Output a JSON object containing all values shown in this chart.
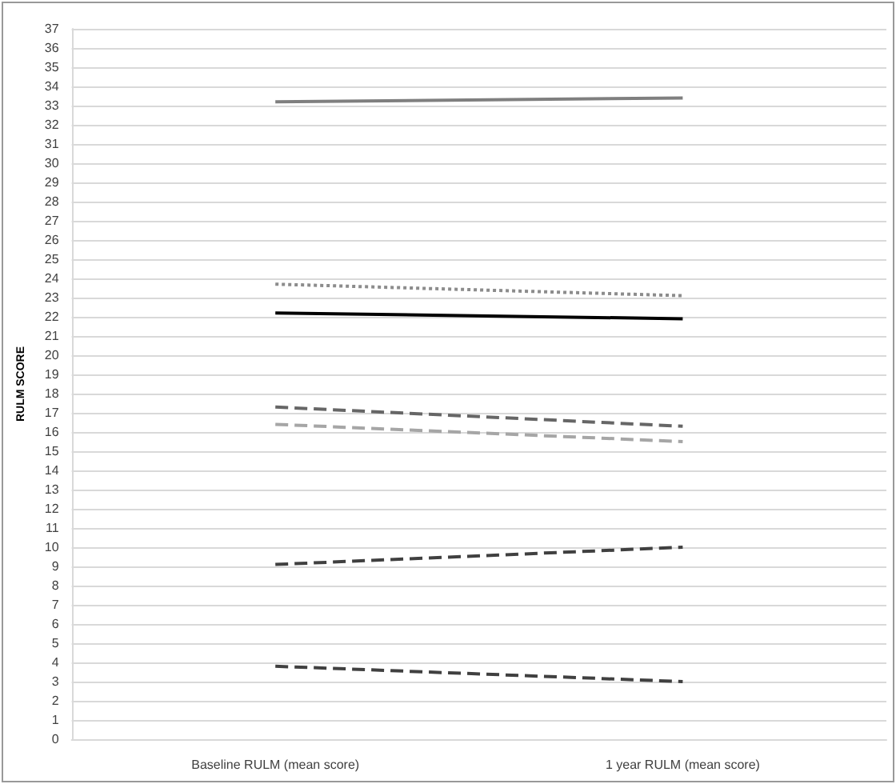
{
  "chart_data": {
    "type": "line",
    "ylabel": "RULM SCORE",
    "categories": [
      "Baseline RULM (mean score)",
      "1 year RULM (mean score)"
    ],
    "series": [
      {
        "color": "#7f7f7f",
        "values": [
          33.2,
          33.4
        ],
        "line_style": "solid"
      },
      {
        "color": "#8c8c8c",
        "values": [
          23.7,
          23.1
        ],
        "line_style": "dotted"
      },
      {
        "color": "#000000",
        "values": [
          22.2,
          21.9
        ],
        "line_style": "solid"
      },
      {
        "color": "#666666",
        "values": [
          17.3,
          16.3
        ],
        "line_style": "dashed"
      },
      {
        "color": "#a6a6a6",
        "values": [
          16.4,
          15.5
        ],
        "line_style": "dashed"
      },
      {
        "color": "#404040",
        "values": [
          9.1,
          10.0
        ],
        "line_style": "dashed"
      },
      {
        "color": "#404040",
        "values": [
          3.8,
          3.0
        ],
        "line_style": "dashed"
      }
    ],
    "ylim": [
      0,
      37
    ],
    "yticks": [
      0,
      1,
      2,
      3,
      4,
      5,
      6,
      7,
      8,
      9,
      10,
      11,
      12,
      13,
      14,
      15,
      16,
      17,
      18,
      19,
      20,
      21,
      22,
      23,
      24,
      25,
      26,
      27,
      28,
      29,
      30,
      31,
      32,
      33,
      34,
      35,
      36,
      37
    ],
    "grid": "y",
    "marker": "none"
  }
}
